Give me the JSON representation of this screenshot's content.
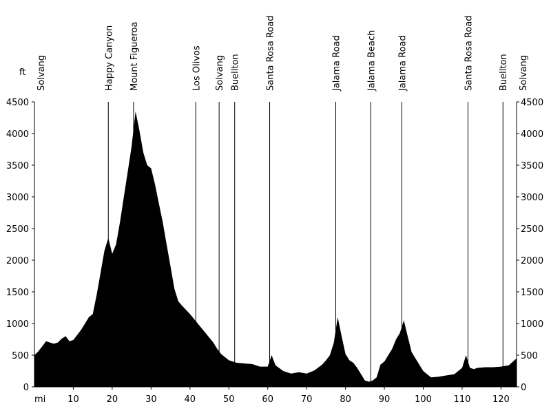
{
  "chart_data": {
    "type": "area",
    "x_unit": "mi",
    "y_unit": "ft",
    "xlim": [
      0,
      124
    ],
    "ylim": [
      0,
      4500
    ],
    "x_ticks": [
      10,
      20,
      30,
      40,
      50,
      60,
      70,
      80,
      90,
      100,
      110,
      120
    ],
    "y_ticks": [
      0,
      500,
      1000,
      1500,
      2000,
      2500,
      3000,
      3500,
      4000,
      4500
    ],
    "waypoints": [
      {
        "label": "Solvang",
        "x": 0
      },
      {
        "label": "Happy Canyon",
        "x": 19
      },
      {
        "label": "Mount Figueroa",
        "x": 25.5
      },
      {
        "label": "Los Olivos",
        "x": 41.5
      },
      {
        "label": "Solvang",
        "x": 47.5
      },
      {
        "label": "Buellton",
        "x": 51.5
      },
      {
        "label": "Santa Rosa Road",
        "x": 60.5
      },
      {
        "label": "Jalama Road",
        "x": 77.5
      },
      {
        "label": "Jalama Beach",
        "x": 86.5
      },
      {
        "label": "Jalama Road",
        "x": 94.5
      },
      {
        "label": "Santa Rosa Road",
        "x": 111.5
      },
      {
        "label": "Buellton",
        "x": 120.5
      },
      {
        "label": "Solvang",
        "x": 124
      }
    ],
    "x": [
      0,
      1,
      2,
      3,
      4,
      5,
      6,
      7,
      8,
      9,
      10,
      11,
      12,
      13,
      14,
      15,
      16,
      17,
      18,
      19,
      20,
      21,
      22,
      23,
      24,
      25,
      26,
      27,
      28,
      29,
      30,
      31,
      32,
      33,
      34,
      35,
      36,
      37,
      38,
      40,
      42,
      44,
      46,
      47,
      48,
      50,
      52,
      54,
      56,
      58,
      60,
      61,
      62,
      64,
      66,
      68,
      70,
      72,
      74,
      75,
      76,
      77,
      78,
      79,
      80,
      81,
      82,
      83,
      84,
      85,
      86,
      87,
      88,
      89,
      90,
      91,
      92,
      93,
      94,
      95,
      96,
      97,
      98,
      100,
      102,
      104,
      106,
      108,
      110,
      111,
      112,
      113,
      114,
      116,
      118,
      120,
      122,
      124
    ],
    "y": [
      500,
      560,
      640,
      720,
      700,
      680,
      700,
      760,
      800,
      720,
      740,
      820,
      900,
      1000,
      1100,
      1150,
      1450,
      1800,
      2150,
      2350,
      2100,
      2250,
      2600,
      3000,
      3400,
      3800,
      4350,
      4050,
      3700,
      3500,
      3450,
      3200,
      2900,
      2600,
      2250,
      1900,
      1550,
      1350,
      1280,
      1150,
      1000,
      850,
      700,
      600,
      520,
      420,
      380,
      370,
      360,
      320,
      320,
      500,
      340,
      250,
      210,
      230,
      210,
      260,
      350,
      420,
      500,
      700,
      1100,
      800,
      520,
      420,
      380,
      300,
      200,
      100,
      80,
      100,
      150,
      350,
      400,
      500,
      600,
      750,
      850,
      1050,
      800,
      550,
      450,
      250,
      150,
      160,
      180,
      200,
      300,
      500,
      300,
      280,
      300,
      310,
      310,
      320,
      340,
      450
    ]
  }
}
